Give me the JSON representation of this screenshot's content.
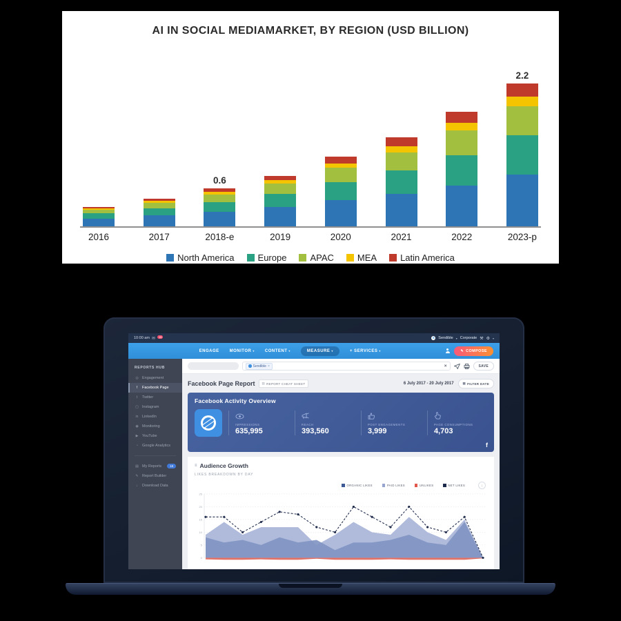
{
  "chart_data": [
    {
      "type": "bar",
      "stacked": true,
      "title": "AI IN SOCIAL MEDIAMARKET, BY REGION (USD BILLION)",
      "categories": [
        "2016",
        "2017",
        "2018-e",
        "2019",
        "2020",
        "2021",
        "2022",
        "2023-p"
      ],
      "series": [
        {
          "name": "North America",
          "color": "#2e75b6",
          "values": [
            0.12,
            0.17,
            0.22,
            0.3,
            0.4,
            0.5,
            0.63,
            0.8
          ]
        },
        {
          "name": "Europe",
          "color": "#2aa183",
          "values": [
            0.08,
            0.11,
            0.15,
            0.2,
            0.28,
            0.36,
            0.47,
            0.6
          ]
        },
        {
          "name": "APAC",
          "color": "#a3bf3f",
          "values": [
            0.06,
            0.08,
            0.12,
            0.16,
            0.22,
            0.28,
            0.38,
            0.45
          ]
        },
        {
          "name": "MEA",
          "color": "#f5c400",
          "values": [
            0.02,
            0.03,
            0.04,
            0.05,
            0.07,
            0.09,
            0.12,
            0.15
          ]
        },
        {
          "name": "Latin America",
          "color": "#bf3a2b",
          "values": [
            0.02,
            0.04,
            0.05,
            0.07,
            0.1,
            0.14,
            0.17,
            0.2
          ]
        }
      ],
      "annotations": [
        {
          "category": "2018-e",
          "text": "0.6"
        },
        {
          "category": "2023-p",
          "text": "2.2"
        }
      ],
      "xlabel": "",
      "ylabel": "",
      "ylim": [
        0,
        2.4
      ],
      "legend_position": "bottom",
      "grid": false
    },
    {
      "type": "area",
      "title": "Audience Growth",
      "subtitle": "LIKES BREAKDOWN BY DAY",
      "ylim": [
        0,
        25
      ],
      "yticks": [
        0,
        5,
        10,
        15,
        20,
        25
      ],
      "grid": true,
      "legend_position": "top-right",
      "series": [
        {
          "name": "ORGANIC LIKES",
          "color": "#3d5a96",
          "fill": "#8093c2",
          "render": "area",
          "values": [
            8,
            6,
            7,
            5,
            8,
            6,
            7,
            3,
            6,
            6,
            7,
            9,
            6,
            5,
            14,
            0
          ]
        },
        {
          "name": "PAID LIKES",
          "color": "#96a5cd",
          "fill": "#a7b4d8",
          "render": "area",
          "values": [
            9,
            14,
            9,
            12,
            12,
            12,
            5,
            9,
            14,
            10,
            9,
            16,
            10,
            7,
            15,
            0
          ]
        },
        {
          "name": "UNLIKES",
          "color": "#e2574c",
          "fill": "#e0695f",
          "render": "negative-band",
          "values": [
            0.8,
            1,
            1,
            0.8,
            1,
            1,
            0.5,
            1,
            1,
            1,
            0.8,
            1,
            1,
            1,
            1,
            0.3
          ]
        },
        {
          "name": "NET LIKES",
          "color": "#1c2b4a",
          "fill": "#202c4c",
          "render": "dashed-line",
          "values": [
            16,
            16,
            10,
            14,
            18,
            17,
            12,
            10,
            20,
            16,
            12,
            20,
            12,
            10,
            16,
            0
          ]
        }
      ]
    }
  ],
  "laptop": {
    "topbar": {
      "time": "10:00 am",
      "badge": "15",
      "account": "Sendible",
      "org": "Corporate",
      "logo_letter": "S"
    },
    "nav": {
      "items": [
        {
          "label": "ENGAGE",
          "caret": false,
          "active": false
        },
        {
          "label": "MONITOR",
          "caret": true,
          "active": false
        },
        {
          "label": "CONTENT",
          "caret": true,
          "active": false
        },
        {
          "label": "MEASURE",
          "caret": true,
          "active": true
        },
        {
          "label": "+ SERVICES",
          "caret": true,
          "active": false
        }
      ],
      "compose": "COMPOSE"
    },
    "sidebar": {
      "header": "REPORTS HUB",
      "items": [
        {
          "label": "Engagement",
          "icon": "engagement-icon",
          "glyph": "◎",
          "active": false
        },
        {
          "label": "Facebook Page",
          "icon": "facebook-icon",
          "glyph": "f",
          "active": true
        },
        {
          "label": "Twitter",
          "icon": "twitter-icon",
          "glyph": "t",
          "active": false
        },
        {
          "label": "Instagram",
          "icon": "instagram-icon",
          "glyph": "▢",
          "active": false
        },
        {
          "label": "LinkedIn",
          "icon": "linkedin-icon",
          "glyph": "in",
          "active": false
        },
        {
          "label": "Monitoring",
          "icon": "monitoring-icon",
          "glyph": "◉",
          "active": false
        },
        {
          "label": "YouTube",
          "icon": "youtube-icon",
          "glyph": "▶",
          "active": false
        },
        {
          "label": "Google Analytics",
          "icon": "google-analytics-icon",
          "glyph": "◔",
          "active": false
        }
      ],
      "footer_items": [
        {
          "label": "My Reports",
          "icon": "my-reports-icon",
          "glyph": "▤",
          "badge": "18"
        },
        {
          "label": "Report Builder",
          "icon": "report-builder-icon",
          "glyph": "✎",
          "badge": ""
        },
        {
          "label": "Download Data",
          "icon": "download-data-icon",
          "glyph": "↓",
          "badge": ""
        }
      ]
    },
    "toolbar": {
      "tag": "Sendible",
      "tag_close": "×",
      "clear": "×",
      "save": "SAVE"
    },
    "report": {
      "title": "Facebook Page Report",
      "cheat_sheet": "REPORT CHEAT SHEET",
      "date_range": "6 July 2017 - 20 July 2017",
      "filter": "FILTER DATE"
    },
    "overview": {
      "title": "Facebook Activity Overview",
      "stats": [
        {
          "label": "IMPRESSIONS",
          "value": "635,995",
          "icon": "eye-icon"
        },
        {
          "label": "REACH",
          "value": "393,560",
          "icon": "megaphone-icon"
        },
        {
          "label": "POST ENGAGEMENTS",
          "value": "3,999",
          "icon": "thumbs-up-icon"
        },
        {
          "label": "PAGE CONSUMPTIONS",
          "value": "4,703",
          "icon": "thumb-click-icon"
        }
      ],
      "facebook_glyph": "f"
    },
    "audience": {
      "title": "Audience Growth",
      "subtitle": "LIKES BREAKDOWN BY DAY"
    }
  }
}
